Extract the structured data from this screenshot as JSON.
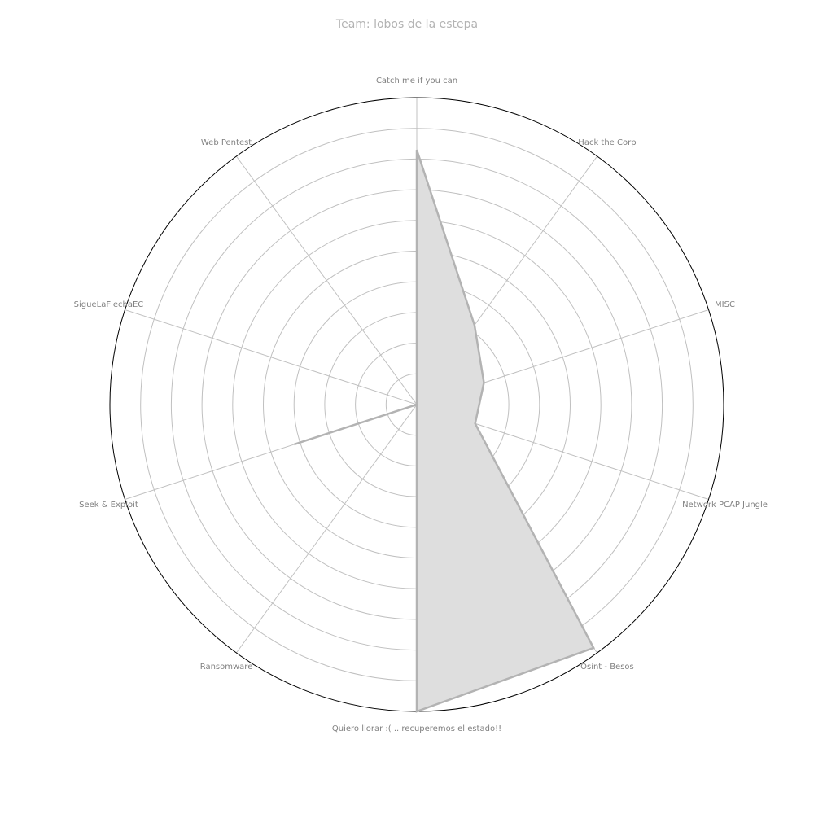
{
  "chart_data": {
    "type": "radar",
    "title": "Team: lobos de la estepa",
    "categories": [
      "Catch me if you can",
      "Hack the Corp",
      "MISC",
      "Network PCAP Jungle",
      "Osint - Besos",
      "Quiero llorar :( .. recuperemos el estado!!",
      "Ransomware",
      "Seek & Exploit",
      "SigueLaFlechaEC",
      "Web Pentest"
    ],
    "series": [
      {
        "values": [
          0.83,
          0.32,
          0.23,
          0.2,
          0.98,
          1.0,
          0.0,
          0.42,
          0.0,
          0.0
        ]
      }
    ],
    "rlim": [
      0,
      1
    ],
    "rgrid_count": 10,
    "grid": true,
    "colors": {
      "fill": "#dedede",
      "line": "#b3b3b3",
      "grid": "#c0c0c0",
      "outer": "#000000",
      "label": "#808080",
      "title": "#b3b3b3"
    }
  }
}
